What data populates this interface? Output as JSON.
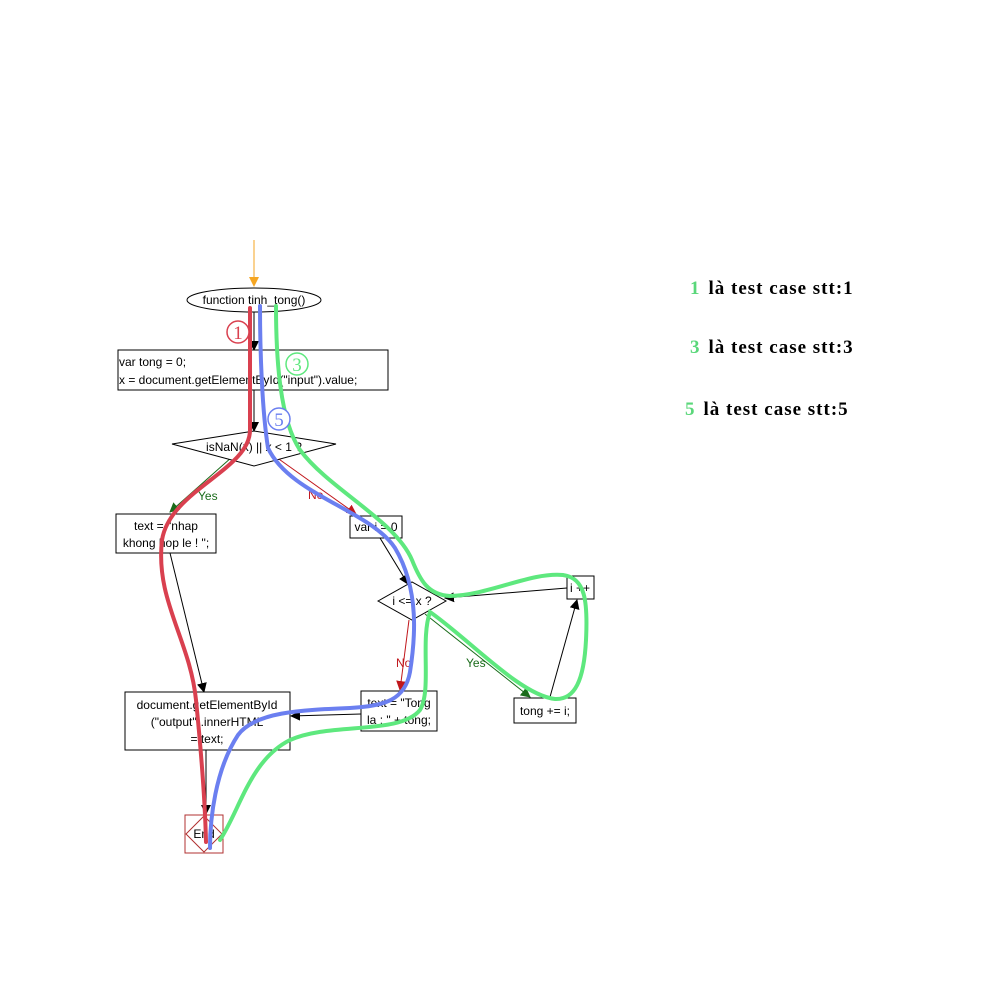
{
  "flowchart": {
    "start": "function tinh_tong()",
    "init_line1": "var tong = 0;",
    "init_line2": "x = document.getElementById(\"input\").value;",
    "decision1": "isNaN(x) || x < 1 ?",
    "yes_label": "Yes",
    "no_label": "No",
    "invalid_line1": "text = \"nhap",
    "invalid_line2": "khong hop le ! \";",
    "set_i": "var i = 0",
    "decision2": "i <= x ?",
    "increment": "i ++",
    "accumulate": "tong += i;",
    "result_line1": "text = \"Tong",
    "result_line2": "la : \" + tong;",
    "output_line1": "document.getElementById",
    "output_line2": "(\"output\").innerHTML",
    "output_line3": "= text;",
    "end": "End"
  },
  "paths": [
    {
      "marker": "1",
      "color": "#d9404f"
    },
    {
      "marker": "3",
      "color": "#5ee87e"
    },
    {
      "marker": "5",
      "color": "#6b7ff0"
    }
  ],
  "colors": {
    "entry_arrow": "#f5a623",
    "yes": "#1a6b1a",
    "no": "#c0171c"
  },
  "legend": [
    {
      "num": "1",
      "text": "là test case stt:1"
    },
    {
      "num": "3",
      "text": "là test case stt:3"
    },
    {
      "num": "5",
      "text": "là test case stt:5"
    }
  ]
}
